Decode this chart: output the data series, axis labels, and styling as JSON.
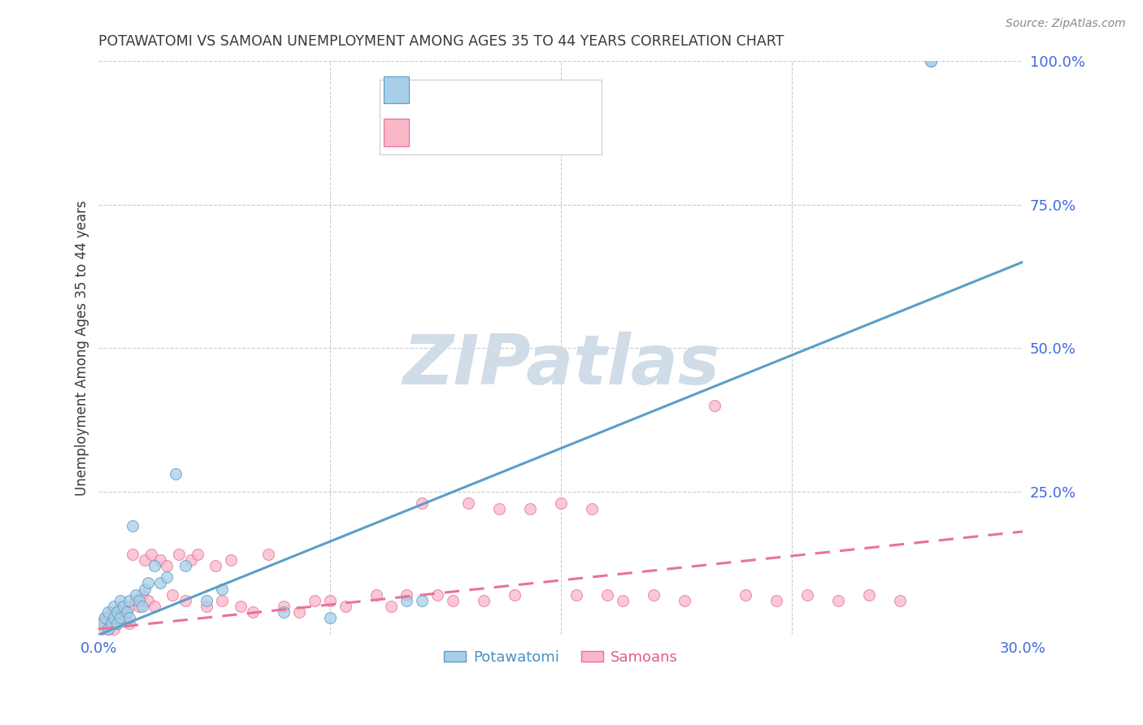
{
  "title": "POTAWATOMI VS SAMOAN UNEMPLOYMENT AMONG AGES 35 TO 44 YEARS CORRELATION CHART",
  "source": "Source: ZipAtlas.com",
  "ylabel": "Unemployment Among Ages 35 to 44 years",
  "xlim": [
    0.0,
    0.3
  ],
  "ylim": [
    0.0,
    1.0
  ],
  "legend_label1": "Potawatomi",
  "legend_label2": "Samoans",
  "blue_fill": "#a8cfe8",
  "blue_edge": "#5b9ec9",
  "pink_fill": "#f9b8c8",
  "pink_edge": "#e8729a",
  "blue_line": "#5b9ec9",
  "pink_line": "#e8729a",
  "legend_blue": "#4a90c4",
  "legend_pink": "#e0607e",
  "title_color": "#3a3a3a",
  "ylabel_color": "#3a3a3a",
  "tick_color": "#4169e1",
  "grid_color": "#cccccc",
  "watermark_color": "#d0dce8",
  "potawatomi_x": [
    0.001,
    0.002,
    0.003,
    0.003,
    0.004,
    0.005,
    0.005,
    0.006,
    0.006,
    0.007,
    0.007,
    0.008,
    0.009,
    0.01,
    0.01,
    0.011,
    0.012,
    0.013,
    0.014,
    0.015,
    0.016,
    0.018,
    0.02,
    0.022,
    0.025,
    0.028,
    0.035,
    0.04,
    0.06,
    0.075,
    0.1,
    0.105,
    0.27,
    0.27
  ],
  "potawatomi_y": [
    0.02,
    0.03,
    0.01,
    0.04,
    0.02,
    0.03,
    0.05,
    0.02,
    0.04,
    0.03,
    0.06,
    0.05,
    0.04,
    0.06,
    0.03,
    0.19,
    0.07,
    0.06,
    0.05,
    0.08,
    0.09,
    0.12,
    0.09,
    0.1,
    0.28,
    0.12,
    0.06,
    0.08,
    0.04,
    0.03,
    0.06,
    0.06,
    1.0,
    1.0
  ],
  "samoan_x": [
    0.001,
    0.001,
    0.002,
    0.002,
    0.003,
    0.003,
    0.004,
    0.004,
    0.005,
    0.005,
    0.006,
    0.006,
    0.007,
    0.007,
    0.008,
    0.009,
    0.01,
    0.01,
    0.011,
    0.012,
    0.013,
    0.014,
    0.015,
    0.016,
    0.017,
    0.018,
    0.02,
    0.022,
    0.024,
    0.026,
    0.028,
    0.03,
    0.032,
    0.035,
    0.038,
    0.04,
    0.043,
    0.046,
    0.05,
    0.055,
    0.06,
    0.065,
    0.07,
    0.075,
    0.08,
    0.09,
    0.095,
    0.1,
    0.105,
    0.11,
    0.115,
    0.12,
    0.125,
    0.13,
    0.135,
    0.14,
    0.15,
    0.155,
    0.16,
    0.165,
    0.17,
    0.18,
    0.19,
    0.2,
    0.21,
    0.22,
    0.23,
    0.24,
    0.25,
    0.26
  ],
  "samoan_y": [
    0.01,
    0.02,
    0.02,
    0.03,
    0.01,
    0.03,
    0.02,
    0.04,
    0.01,
    0.03,
    0.02,
    0.04,
    0.03,
    0.05,
    0.03,
    0.04,
    0.02,
    0.05,
    0.14,
    0.06,
    0.05,
    0.07,
    0.13,
    0.06,
    0.14,
    0.05,
    0.13,
    0.12,
    0.07,
    0.14,
    0.06,
    0.13,
    0.14,
    0.05,
    0.12,
    0.06,
    0.13,
    0.05,
    0.04,
    0.14,
    0.05,
    0.04,
    0.06,
    0.06,
    0.05,
    0.07,
    0.05,
    0.07,
    0.23,
    0.07,
    0.06,
    0.23,
    0.06,
    0.22,
    0.07,
    0.22,
    0.23,
    0.07,
    0.22,
    0.07,
    0.06,
    0.07,
    0.06,
    0.4,
    0.07,
    0.06,
    0.07,
    0.06,
    0.07,
    0.06
  ],
  "blue_trendline_x": [
    0.0,
    0.3
  ],
  "blue_trendline_y": [
    0.0,
    0.65
  ],
  "pink_trendline_x": [
    0.0,
    0.3
  ],
  "pink_trendline_y": [
    0.01,
    0.18
  ]
}
